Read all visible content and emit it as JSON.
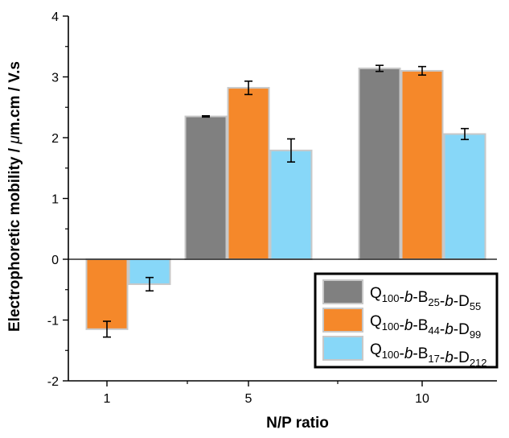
{
  "chart_data": {
    "type": "bar",
    "title": "",
    "xlabel": "N/P ratio",
    "ylabel_parts": [
      "Electrophoretic mobility / ",
      "μ",
      "m.cm / V.s"
    ],
    "categories": [
      "1",
      "5",
      "10"
    ],
    "ylim": [
      -2,
      4
    ],
    "yticks": [
      -2,
      -1,
      0,
      1,
      2,
      3,
      4
    ],
    "grid": false,
    "legend_position": "bottom-right",
    "series": [
      {
        "name": "Q100-b-B25-b-D55",
        "name_parts": [
          [
            "Q",
            ""
          ],
          [
            "100",
            "sub"
          ],
          [
            "-",
            ""
          ],
          [
            "b",
            "it"
          ],
          [
            "-B",
            ""
          ],
          [
            "25",
            "sub"
          ],
          [
            "-",
            ""
          ],
          [
            "b",
            "it"
          ],
          [
            "-D",
            ""
          ],
          [
            "55",
            "sub"
          ]
        ],
        "color": "#808080",
        "values": [
          null,
          2.35,
          3.14
        ],
        "errors": [
          null,
          0.01,
          0.05
        ]
      },
      {
        "name": "Q100-b-B44-b-D99",
        "name_parts": [
          [
            "Q",
            ""
          ],
          [
            "100",
            "sub"
          ],
          [
            "-",
            ""
          ],
          [
            "b",
            "it"
          ],
          [
            "-B",
            ""
          ],
          [
            "44",
            "sub"
          ],
          [
            "-",
            ""
          ],
          [
            "b",
            "it"
          ],
          [
            "-D",
            ""
          ],
          [
            "99",
            "sub"
          ]
        ],
        "color": "#F5882A",
        "values": [
          -1.15,
          2.82,
          3.1
        ],
        "errors": [
          0.13,
          0.11,
          0.07
        ]
      },
      {
        "name": "Q100-b-B17-b-D212",
        "name_parts": [
          [
            "Q",
            ""
          ],
          [
            "100",
            "sub"
          ],
          [
            "-",
            ""
          ],
          [
            "b",
            "it"
          ],
          [
            "-B",
            ""
          ],
          [
            "17",
            "sub"
          ],
          [
            "-",
            ""
          ],
          [
            "b",
            "it"
          ],
          [
            "-D",
            ""
          ],
          [
            "212",
            "sub"
          ]
        ],
        "color": "#87D7F8",
        "values": [
          -0.41,
          1.79,
          2.06
        ],
        "errors": [
          0.11,
          0.19,
          0.09
        ]
      }
    ]
  }
}
